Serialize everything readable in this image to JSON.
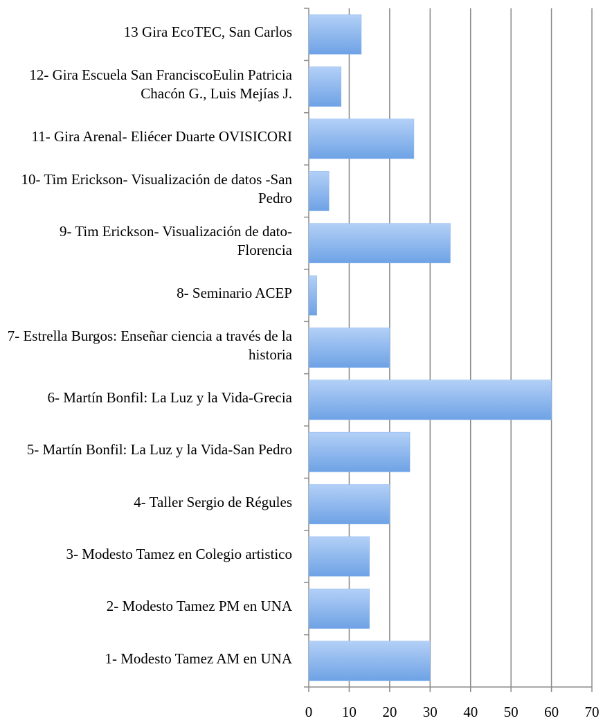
{
  "chart_data": {
    "type": "barh",
    "categories": [
      "1- Modesto Tamez AM en UNA",
      "2- Modesto Tamez PM en UNA",
      "3- Modesto Tamez en Colegio artistico",
      "4- Taller Sergio de Régules",
      "5- Martín Bonfil: La Luz y la Vida-San Pedro",
      "6- Martín Bonfil: La Luz y la Vida-Grecia",
      "7- Estrella Burgos: Enseñar ciencia a través de la historia",
      "8- Seminario ACEP",
      "9- Tim Erickson- Visualización de dato-Florencia",
      "10- Tim Erickson- Visualización de datos -San Pedro",
      "11- Gira Arenal- Eliécer Duarte OVISICORI",
      "12- Gira Escuela San FranciscoEulin Patricia Chacón G., Luis Mejías J.",
      "13 Gira EcoTEC, San Carlos"
    ],
    "values": [
      30,
      15,
      15,
      20,
      25,
      60,
      20,
      2,
      35,
      5,
      26,
      8,
      13
    ],
    "color": "#8ab6ee",
    "xlim": [
      0,
      70
    ],
    "xticks": [
      0,
      10,
      20,
      30,
      40,
      50,
      60,
      70
    ],
    "grid": true
  }
}
